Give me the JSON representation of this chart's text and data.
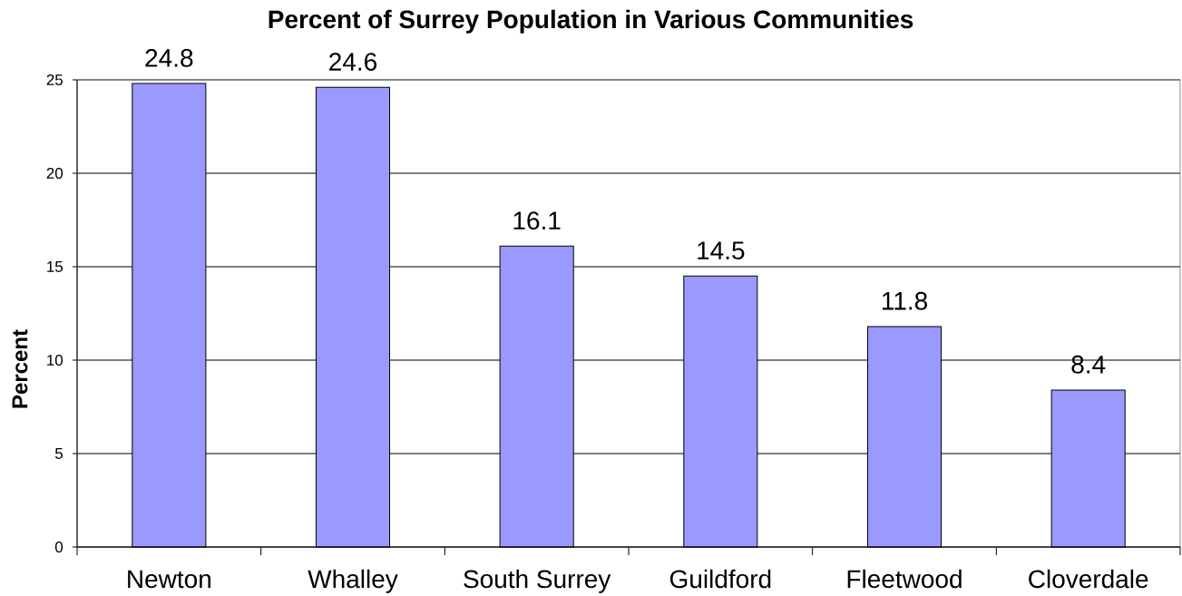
{
  "chart_data": {
    "type": "bar",
    "title": "Percent of Surrey Population in Various Communities",
    "ylabel": "Percent",
    "categories": [
      "Newton",
      "Whalley",
      "South Surrey",
      "Guildford",
      "Fleetwood",
      "Cloverdale"
    ],
    "values": [
      24.8,
      24.6,
      16.1,
      14.5,
      11.8,
      8.4
    ],
    "color": "#9999ff",
    "ylim": [
      0,
      25
    ],
    "yticks": [
      0,
      5,
      10,
      15,
      20,
      25
    ],
    "grid": "y",
    "data_labels": true
  }
}
